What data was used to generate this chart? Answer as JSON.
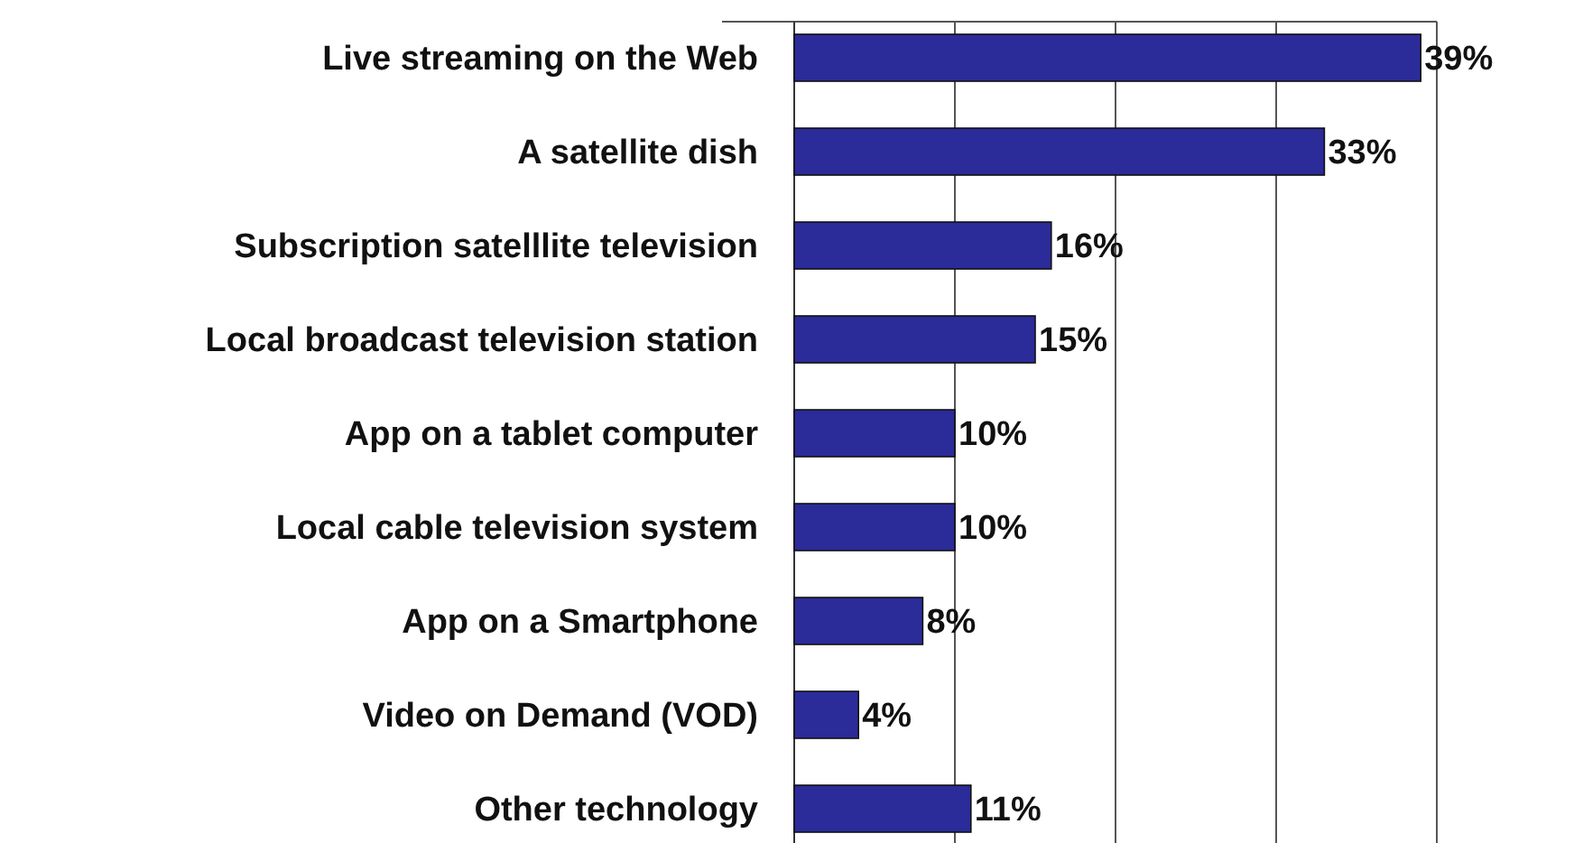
{
  "chart_data": {
    "type": "bar",
    "orientation": "horizontal",
    "categories": [
      "Live streaming on the Web",
      "A satellite dish",
      "Subscription satelllite television",
      "Local broadcast television station",
      "App on a tablet computer",
      "Local cable television system",
      "App on a Smartphone",
      "Video on Demand (VOD)",
      "Other technology"
    ],
    "values": [
      39,
      33,
      16,
      15,
      10,
      10,
      8,
      4,
      11
    ],
    "value_labels": [
      "39%",
      "33%",
      "16%",
      "15%",
      "10%",
      "10%",
      "8%",
      "4%",
      "11%"
    ],
    "color": "#2b2b9a",
    "xlim": [
      0,
      40
    ],
    "xticks": [
      {
        "value": 0,
        "label": null
      },
      {
        "value": 10,
        "label": null
      },
      {
        "value": 20,
        "label": null
      },
      {
        "value": 30,
        "label": null
      },
      {
        "value": 40,
        "label": null
      }
    ],
    "tick_labels": "y",
    "grid": "x"
  }
}
